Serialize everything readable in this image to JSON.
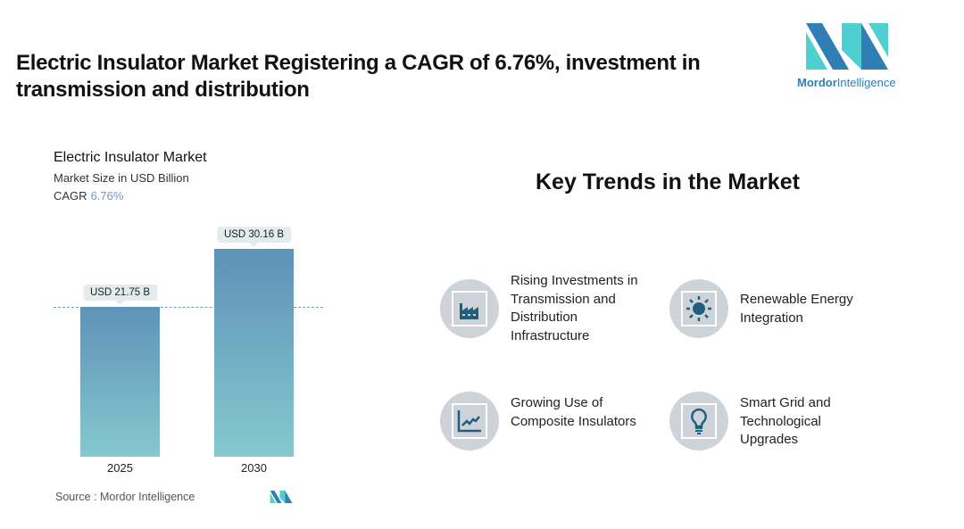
{
  "title": "Electric Insulator Market Registering a CAGR of 6.76%, investment in transmission and distribution",
  "logo": {
    "text_bold": "Mordor",
    "text_light": "Intelligence"
  },
  "chart_data": {
    "type": "bar",
    "title": "Electric Insulator Market",
    "subtitle": "Market Size in USD Billion",
    "cagr_label": "CAGR",
    "cagr_value": "6.76%",
    "categories": [
      "2025",
      "2030"
    ],
    "values": [
      21.75,
      30.16
    ],
    "data_labels": [
      "USD 21.75 B",
      "USD 30.16 B"
    ],
    "colors": {
      "bar_top": "#5e92b8",
      "bar_bottom": "#86c8ce"
    },
    "reference_line_value": 21.75,
    "ylim": [
      0,
      30.16
    ]
  },
  "source": "Source :  Mordor Intelligence",
  "key_trends": {
    "heading": "Key Trends in the Market",
    "items": [
      {
        "label": "Rising Investments in Transmission and Distribution Infrastructure",
        "icon": "factory-icon"
      },
      {
        "label": "Renewable Energy Integration",
        "icon": "sun-icon"
      },
      {
        "label": "Growing Use of Composite Insulators",
        "icon": "trend-chart-icon"
      },
      {
        "label": "Smart Grid and Technological Upgrades",
        "icon": "lightbulb-icon"
      }
    ]
  }
}
